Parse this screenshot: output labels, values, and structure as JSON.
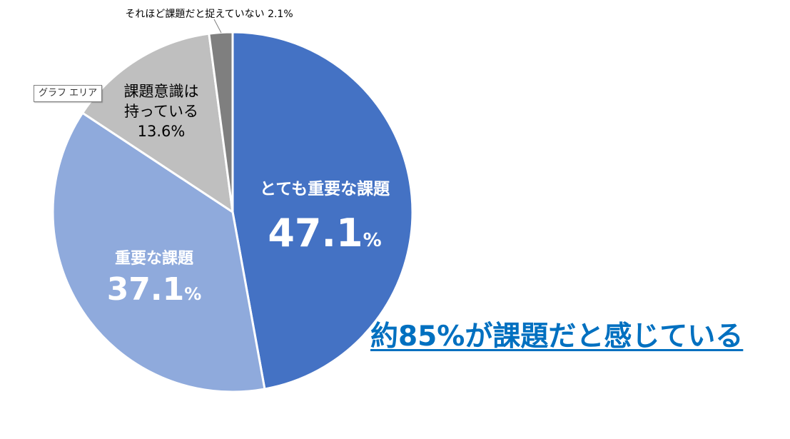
{
  "chart_data": {
    "type": "pie",
    "title": "",
    "slices": [
      {
        "label": "とても重要な課題",
        "value": 47.1,
        "pct_text": "47.1",
        "unit": "%",
        "color": "#4472c4",
        "label_color": "#ffffff"
      },
      {
        "label": "重要な課題",
        "value": 37.1,
        "pct_text": "37.1",
        "unit": "%",
        "color": "#8faadc",
        "label_color": "#ffffff"
      },
      {
        "label_lines": [
          "課題意識は",
          "持っている"
        ],
        "value": 13.6,
        "pct_text": "13.6%",
        "color": "#bfbfbf",
        "label_color": "#000000"
      },
      {
        "label": "それほど課題だと捉えていない 2.1%",
        "value": 2.1,
        "color": "#7f7f7f",
        "label_color": "#000000"
      }
    ]
  },
  "tooltip": "グラフ エリア",
  "headline": "約85%が課題だと感じている"
}
